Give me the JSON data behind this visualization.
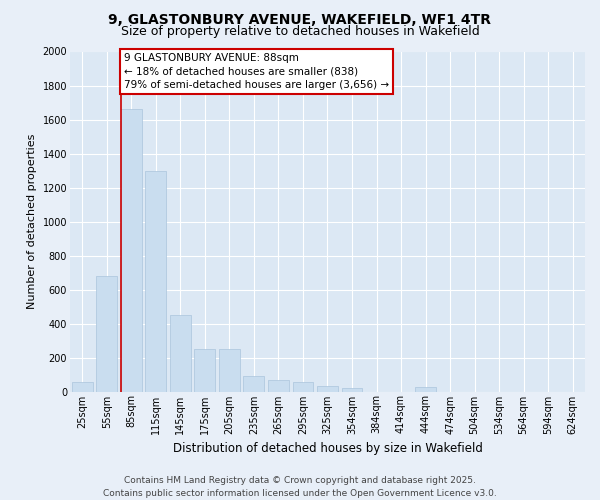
{
  "title": "9, GLASTONBURY AVENUE, WAKEFIELD, WF1 4TR",
  "subtitle": "Size of property relative to detached houses in Wakefield",
  "xlabel": "Distribution of detached houses by size in Wakefield",
  "ylabel": "Number of detached properties",
  "categories": [
    "25sqm",
    "55sqm",
    "85sqm",
    "115sqm",
    "145sqm",
    "175sqm",
    "205sqm",
    "235sqm",
    "265sqm",
    "295sqm",
    "325sqm",
    "354sqm",
    "384sqm",
    "414sqm",
    "444sqm",
    "474sqm",
    "504sqm",
    "534sqm",
    "564sqm",
    "594sqm",
    "624sqm"
  ],
  "values": [
    55,
    680,
    1660,
    1300,
    450,
    250,
    250,
    90,
    65,
    55,
    30,
    20,
    0,
    0,
    25,
    0,
    0,
    0,
    0,
    0,
    0
  ],
  "bar_color": "#c9ddef",
  "bar_edge_color": "#aac4dc",
  "vline_color": "#cc0000",
  "annotation_text": "9 GLASTONBURY AVENUE: 88sqm\n← 18% of detached houses are smaller (838)\n79% of semi-detached houses are larger (3,656) →",
  "annotation_box_color": "#cc0000",
  "ylim": [
    0,
    2000
  ],
  "yticks": [
    0,
    200,
    400,
    600,
    800,
    1000,
    1200,
    1400,
    1600,
    1800,
    2000
  ],
  "bg_color": "#e8eff8",
  "plot_bg_color": "#dce8f4",
  "footer": "Contains HM Land Registry data © Crown copyright and database right 2025.\nContains public sector information licensed under the Open Government Licence v3.0.",
  "title_fontsize": 10,
  "subtitle_fontsize": 9,
  "xlabel_fontsize": 8.5,
  "ylabel_fontsize": 8,
  "tick_fontsize": 7,
  "footer_fontsize": 6.5,
  "annotation_fontsize": 7.5
}
